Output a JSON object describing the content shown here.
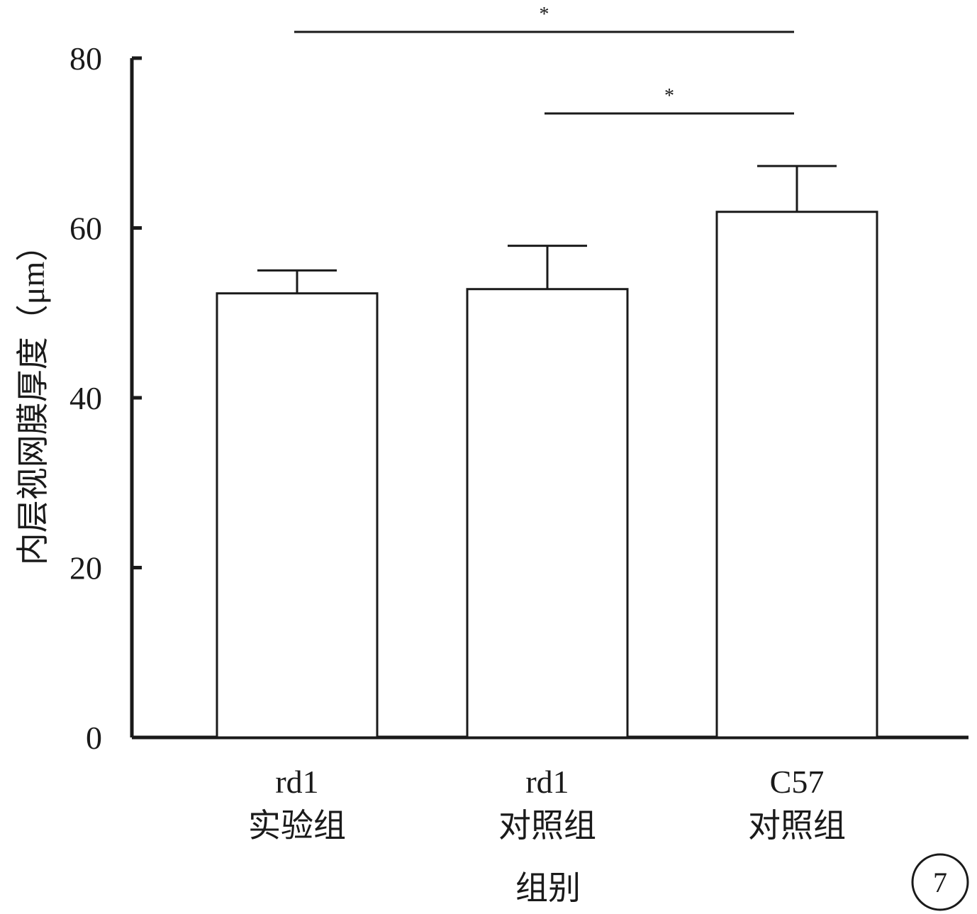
{
  "chart_data": {
    "type": "bar",
    "categories": [
      [
        "rd1",
        "实验组"
      ],
      [
        "rd1",
        "对照组"
      ],
      [
        "C57",
        "对照组"
      ]
    ],
    "values": [
      52.3,
      52.8,
      61.9
    ],
    "errors": [
      2.7,
      5.1,
      5.4
    ],
    "xlabel": "组别",
    "ylabel": "内层视网膜厚度（μm）",
    "ylim": [
      0,
      80
    ],
    "yticks": [
      0,
      20,
      40,
      60,
      80
    ],
    "grid": false,
    "significance": [
      {
        "from": 0,
        "to": 2,
        "label": "*"
      },
      {
        "from": 1,
        "to": 2,
        "label": "*"
      }
    ],
    "colors": {
      "bar_fill": "#ffffff",
      "stroke": "#1a1a1a"
    }
  },
  "panel_label": "7"
}
